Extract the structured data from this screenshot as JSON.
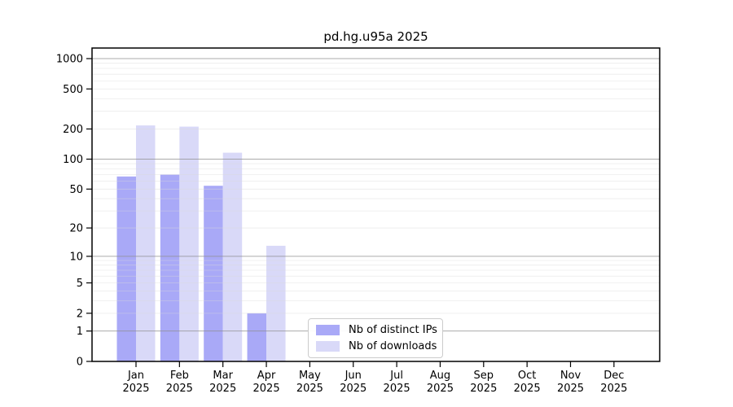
{
  "chart_data": {
    "type": "bar",
    "title": "pd.hg.u95a 2025",
    "year": "2025",
    "categories": [
      "Jan",
      "Feb",
      "Mar",
      "Apr",
      "May",
      "Jun",
      "Jul",
      "Aug",
      "Sep",
      "Oct",
      "Nov",
      "Dec"
    ],
    "series": [
      {
        "name": "Nb of distinct IPs",
        "color": "#a9a9f7",
        "values": [
          67,
          70,
          54,
          2,
          0,
          0,
          0,
          0,
          0,
          0,
          0,
          0
        ]
      },
      {
        "name": "Nb of downloads",
        "color": "#d9d9f8",
        "values": [
          217,
          211,
          116,
          13,
          0,
          0,
          0,
          0,
          0,
          0,
          0,
          0
        ]
      }
    ],
    "xlabel": "",
    "ylabel": "",
    "yscale": "log1p",
    "ylim": [
      0,
      1270
    ],
    "ytick_values": [
      1000,
      500,
      200,
      100,
      50,
      20,
      10,
      5,
      2,
      1,
      0
    ],
    "ytick_labels": [
      "1000",
      "500",
      "200",
      "100",
      "50",
      "20",
      "10",
      "5",
      "2",
      "1",
      "0"
    ],
    "major_grid_values": [
      1000,
      100,
      10,
      1
    ],
    "grid": true,
    "legend_position": "bottom-center",
    "colors": {
      "background": "#ffffff",
      "axis": "#000000",
      "major_grid": "#909090",
      "minor_grid": "#d9d9d9",
      "legend_border": "#cccccc"
    }
  }
}
